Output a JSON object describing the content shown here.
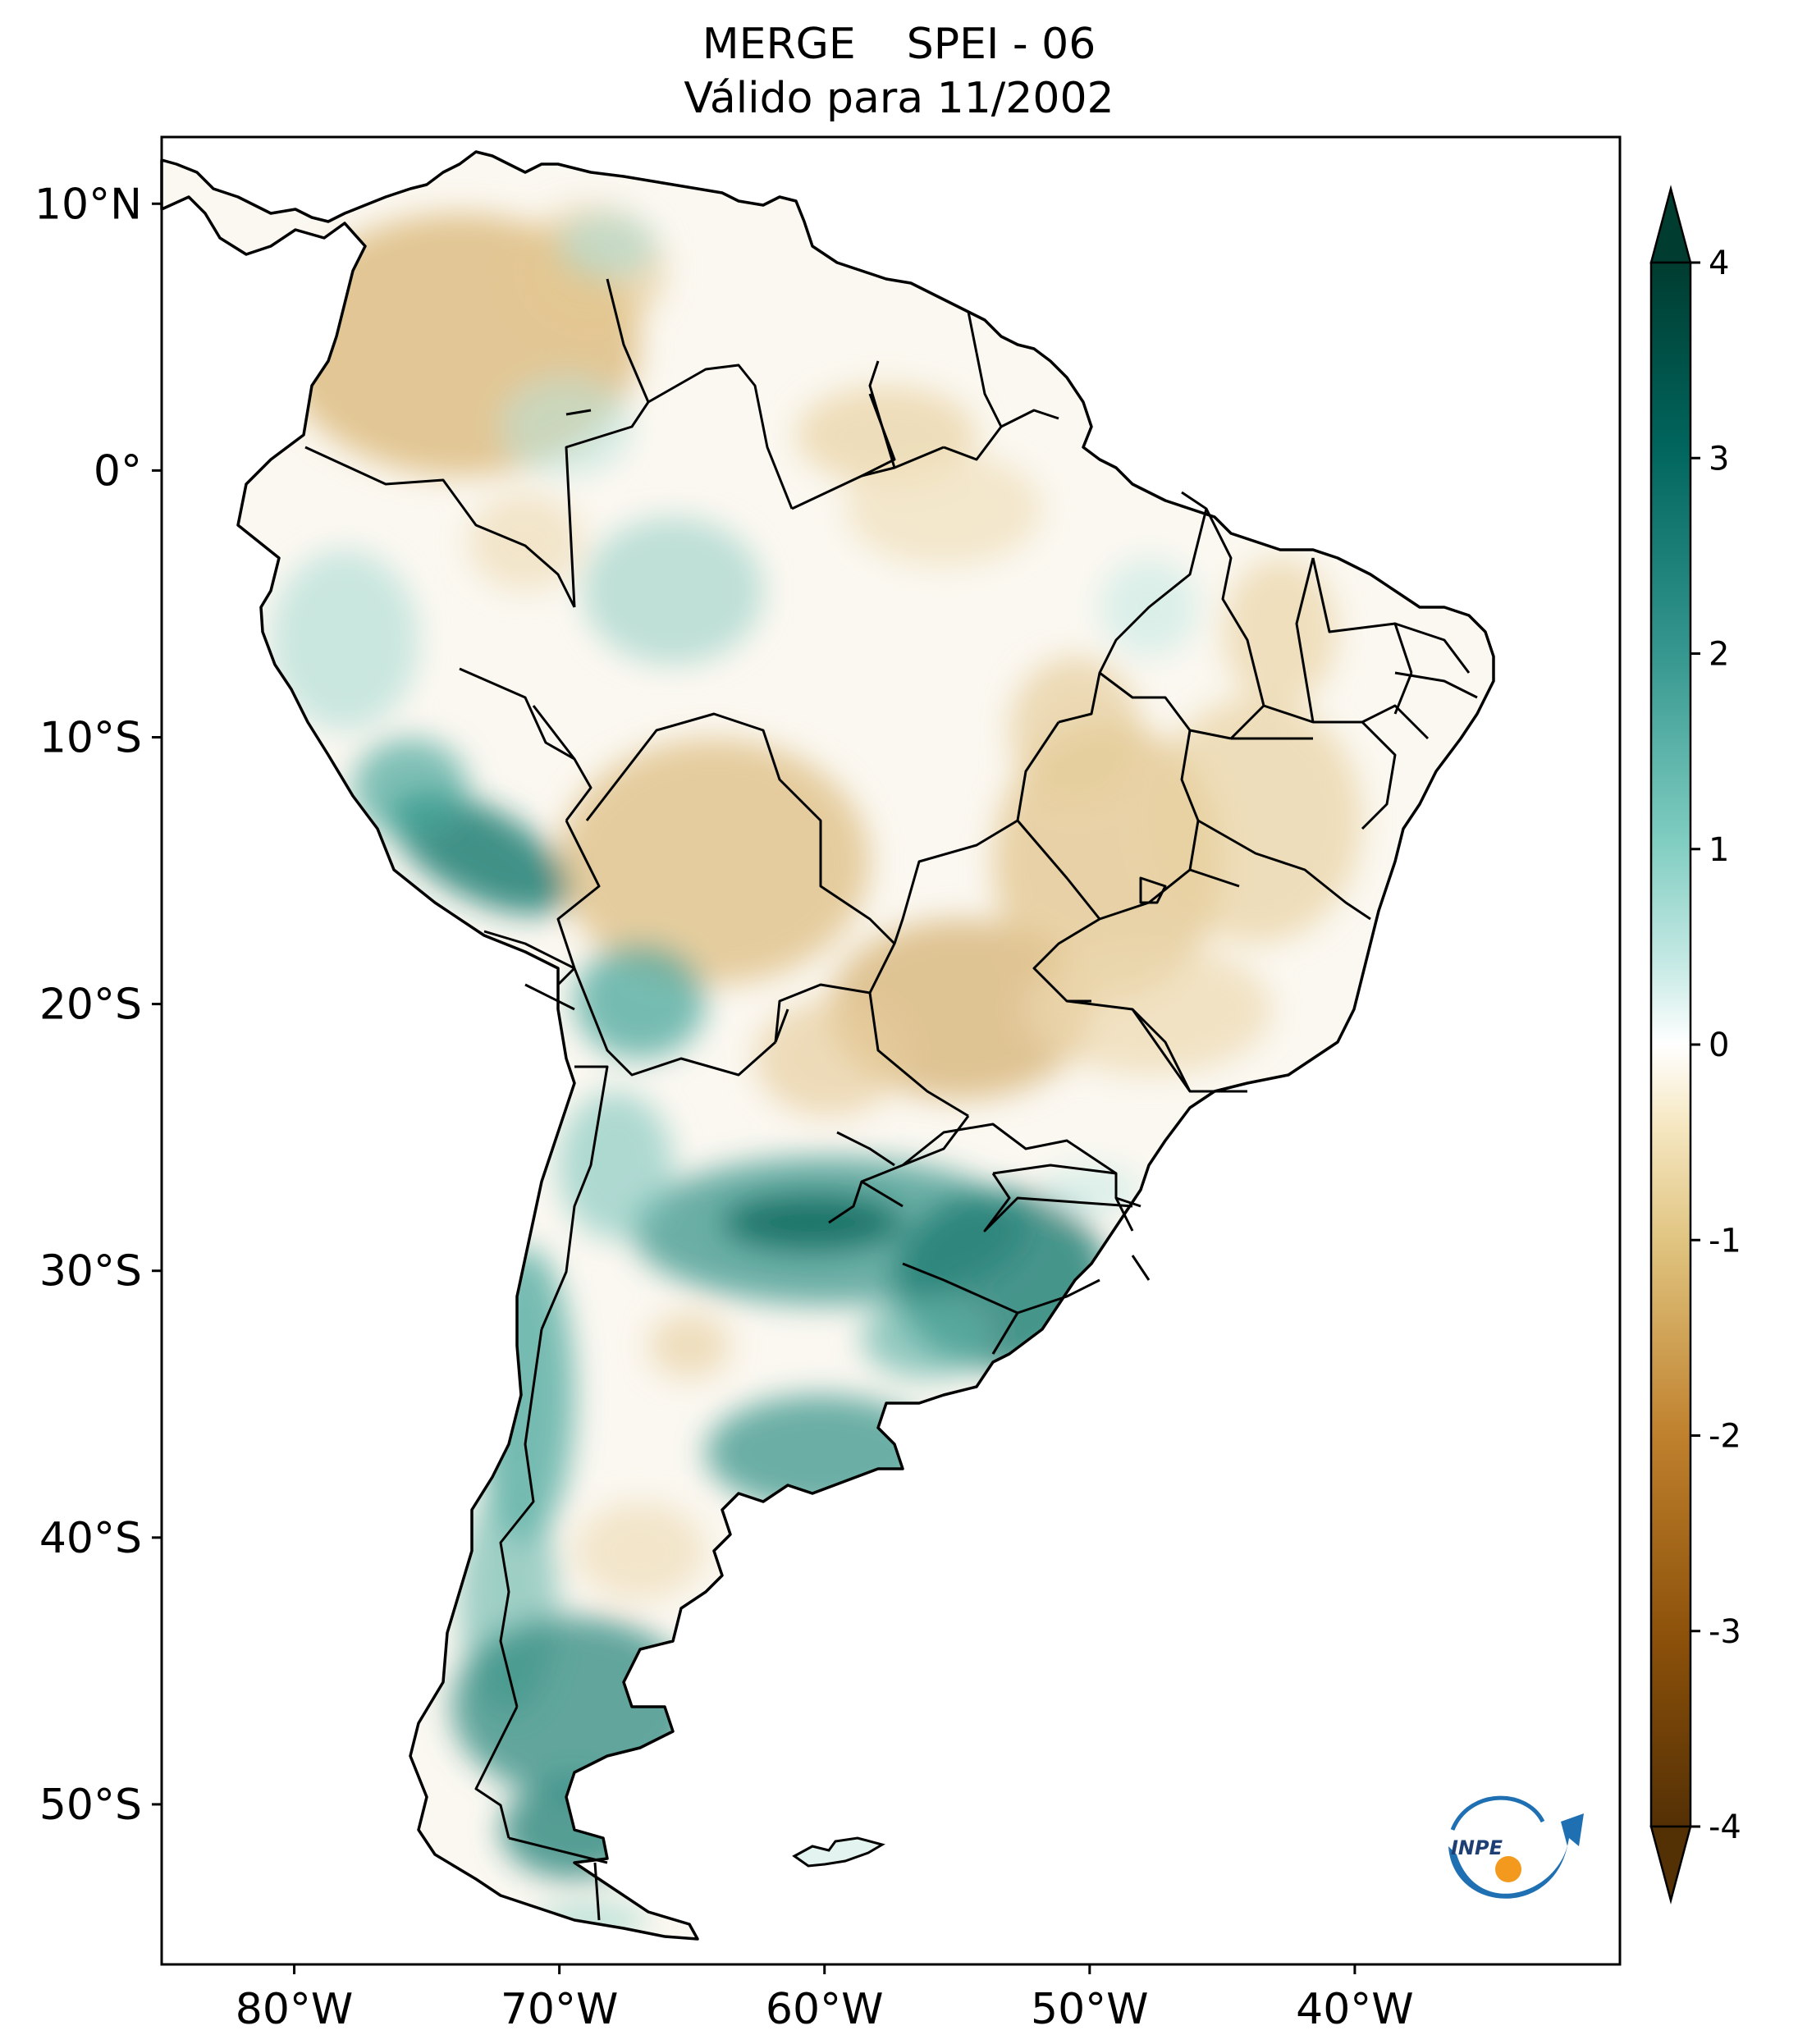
{
  "title": {
    "dataset": "MERGE",
    "index": "SPEI - 06",
    "subtitle": "Válido para 11/2002"
  },
  "map": {
    "region": "South America",
    "longitude_labels": [
      "80°W",
      "70°W",
      "60°W",
      "50°W",
      "40°W"
    ],
    "latitude_labels": [
      "10°N",
      "0°",
      "10°S",
      "20°S",
      "30°S",
      "40°S",
      "50°S"
    ],
    "extent": {
      "lon": [
        -85.0,
        -30.0
      ],
      "lat": [
        -56.0,
        12.5
      ]
    }
  },
  "colorbar": {
    "ticks": [
      "4",
      "3",
      "2",
      "1",
      "0",
      "-1",
      "-2",
      "-3",
      "-4"
    ],
    "range": [
      -4,
      4
    ],
    "extend": "both",
    "colors": {
      "dry_extreme": "#543005",
      "dry_strong": "#8c510a",
      "dry_moderate": "#bf812d",
      "dry_mild": "#dfc27d",
      "dry_light": "#f6e8c3",
      "neutral": "#ffffff",
      "wet_light": "#c7eae5",
      "wet_mild": "#80cdc1",
      "wet_moderate": "#35978f",
      "wet_strong": "#01665e",
      "wet_extreme": "#003c30"
    }
  },
  "logo": {
    "text": "INPE",
    "colors": {
      "arc": "#1f6fb3",
      "dot": "#f39a1e"
    }
  }
}
